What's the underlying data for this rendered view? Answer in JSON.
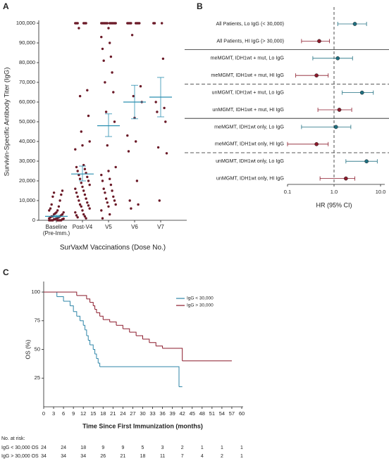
{
  "chart_data": [
    {
      "panel_label": "A",
      "type": "strip",
      "ylabel": "Survivin-Specific Antibody Titer (IgG)",
      "xlabel": "SurVaxM Vaccinations (Dose No.)",
      "categories": [
        "Baseline (Pre-Imm.)",
        "Post-V4",
        "V5",
        "V6",
        "V7"
      ],
      "values": [
        [
          0,
          0,
          0,
          0,
          0,
          0,
          0,
          0,
          500,
          500,
          500,
          800,
          1000,
          1000,
          1200,
          1500,
          1500,
          2000,
          2000,
          2000,
          2500,
          3000,
          3000,
          3500,
          4000,
          4000,
          5000,
          5000,
          6000,
          7000,
          8000,
          10000,
          12000,
          13000,
          14000,
          15000
        ],
        [
          100000,
          100000,
          100000,
          100000,
          100000,
          100000,
          97500,
          66000,
          63000,
          53000,
          45000,
          40000,
          38000,
          36000,
          28000,
          27000,
          26000,
          25000,
          24000,
          23000,
          22000,
          21000,
          20000,
          19000,
          18000,
          17000,
          16000,
          15000,
          14000,
          13000,
          12000,
          11000,
          10000,
          9000,
          8000,
          7500,
          7000,
          6000,
          5000,
          4000,
          3000,
          2500,
          2000,
          1500,
          1000
        ],
        [
          100000,
          100000,
          100000,
          100000,
          100000,
          100000,
          100000,
          100000,
          100000,
          100000,
          100000,
          100000,
          97500,
          93000,
          90000,
          87000,
          83000,
          81000,
          75000,
          70000,
          65000,
          55000,
          50000,
          38000,
          27000,
          25000,
          23000,
          21000,
          20000,
          18000,
          16000,
          15000,
          14000,
          12000,
          11000,
          10000,
          9000,
          8000,
          7000,
          5000,
          3000,
          1000
        ],
        [
          100000,
          100000,
          100000,
          100000,
          100000,
          100000,
          100000,
          100000,
          94000,
          68000,
          63000,
          60000,
          52000,
          43000,
          40000,
          35000,
          20000,
          10000,
          8000,
          6000
        ],
        [
          100000,
          100000,
          100000,
          82000,
          60000,
          57000,
          55000,
          50000,
          37000,
          34000,
          10000
        ]
      ],
      "means": [
        2000,
        23500,
        48000,
        60000,
        62500
      ],
      "error_low": [
        1500,
        20000,
        42500,
        51500,
        52500
      ],
      "error_high": [
        2500,
        27500,
        54000,
        68500,
        72500
      ],
      "color": "#6b1a28",
      "mean_color": "#2a8fb0",
      "ylim": [
        0,
        100000
      ],
      "yticks": [
        0,
        {
          "value": 10000,
          "label": "10,000"
        },
        {
          "value": 20000,
          "label": "20,000"
        },
        {
          "value": 30000,
          "label": "30,000"
        },
        {
          "value": 40000,
          "label": "40,000"
        },
        {
          "value": 50000,
          "label": "50,000"
        },
        {
          "value": 60000,
          "label": "60,000"
        },
        {
          "value": 70000,
          "label": "70,000"
        },
        {
          "value": 80000,
          "label": "80,000"
        },
        {
          "value": 90000,
          "label": "90,000"
        },
        {
          "value": 100000,
          "label": "100,000"
        }
      ]
    },
    {
      "panel_label": "B",
      "type": "forest",
      "categories": [
        "All Patients, Lo IgG (< 30,000)",
        "All Patients, HI IgG (> 30,000)",
        "meMGMT, IDH1wt + mut, Lo IgG",
        "meMGMT, IDH1wt + mut, HI IgG",
        "unMGMT, IDH1wt + mut, Lo IgG",
        "unMGMT, IDH1wt + mut, HI IgG",
        "meMGMT, IDH1wt only, Lo IgG",
        "meMGMT, IDH1wt only, HI IgG",
        "unMGMT, IDH1wt only, Lo IgG",
        "unMGMT, IDH1wt only, HI IgG"
      ],
      "values": [
        2.8,
        0.48,
        1.2,
        0.42,
        4.0,
        1.3,
        1.1,
        0.42,
        5.0,
        1.8
      ],
      "ci_low": [
        1.2,
        0.2,
        0.35,
        0.15,
        1.5,
        0.45,
        0.2,
        0.1,
        1.8,
        0.5
      ],
      "ci_high": [
        5.0,
        0.8,
        2.5,
        0.75,
        7.0,
        2.4,
        2.3,
        0.75,
        8.5,
        2.8
      ],
      "colors": [
        "#1f6f80",
        "#8b1a2b",
        "#1f6f80",
        "#8b1a2b",
        "#1f6f80",
        "#8b1a2b",
        "#1f6f80",
        "#8b1a2b",
        "#1f6f80",
        "#8b1a2b"
      ],
      "xscale": "log",
      "xlim": [
        0.1,
        10
      ],
      "xticks": [
        0.1,
        {
          "value": 1,
          "label": "1.0"
        },
        {
          "value": 10,
          "label": "10.0"
        }
      ],
      "reference": 1,
      "xlabel": "HR (95% CI)"
    },
    {
      "panel_label": "C",
      "type": "km",
      "series": [
        {
          "name": "IgG < 30,000",
          "color": "#2f86a8",
          "x": [
            0,
            4,
            6,
            8,
            9,
            10,
            11,
            12,
            12.5,
            13,
            13.5,
            14,
            15,
            15.5,
            16,
            16.5,
            17,
            41,
            42
          ],
          "values": [
            100,
            96,
            92,
            88,
            83,
            79,
            75,
            71,
            67,
            62,
            58,
            54,
            50,
            46,
            42,
            38,
            35,
            17.5,
            17.5
          ]
        },
        {
          "name": "IgG > 30,000",
          "color": "#8b1a2b",
          "x": [
            0,
            10,
            13,
            14,
            15,
            15.5,
            16,
            17,
            18,
            20,
            22,
            24,
            26,
            28,
            30,
            32,
            34,
            36,
            42,
            57
          ],
          "values": [
            100,
            97,
            94,
            91,
            88,
            85,
            82,
            79,
            76,
            74,
            71,
            68,
            65,
            62,
            59,
            56,
            53,
            51,
            40,
            40
          ]
        }
      ],
      "xlim": [
        0,
        60
      ],
      "xticks": [
        0,
        3,
        6,
        9,
        12,
        15,
        18,
        21,
        24,
        27,
        30,
        33,
        36,
        39,
        42,
        45,
        48,
        51,
        54,
        57,
        60
      ],
      "ylim": [
        0,
        100
      ],
      "yticks": [
        25,
        50,
        75,
        100
      ],
      "xlabel": "Time Since First Immunization (months)",
      "ylabel": "OS (%)",
      "risk_table": {
        "title": "No. at risk:",
        "rows": [
          {
            "label": "IgG < 30,000 OS",
            "values": [
              24,
              24,
              18,
              9,
              9,
              5,
              3,
              2,
              1,
              1,
              1
            ]
          },
          {
            "label": "IgG > 30,000 OS",
            "values": [
              34,
              34,
              34,
              26,
              21,
              18,
              11,
              7,
              4,
              2,
              1
            ]
          }
        ]
      }
    }
  ]
}
